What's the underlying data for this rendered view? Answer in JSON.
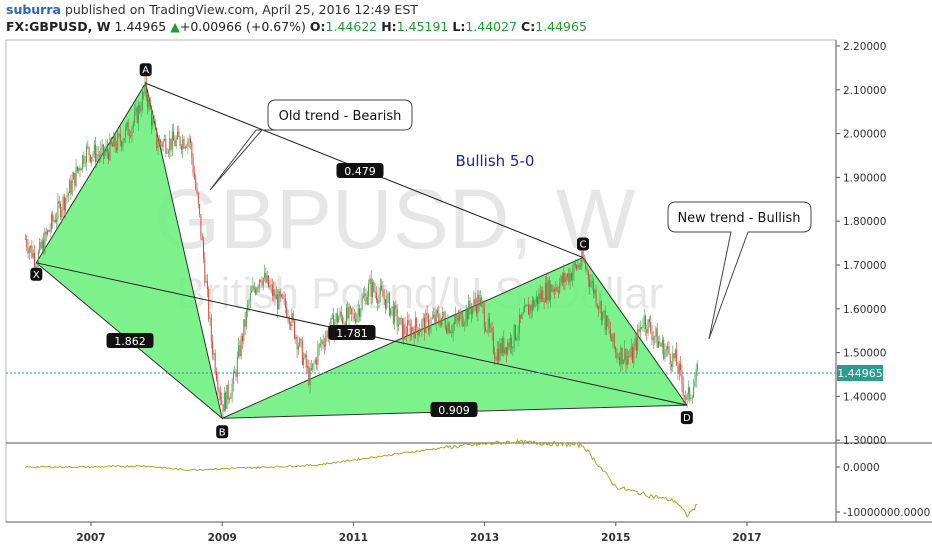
{
  "header": {
    "user": "suburra",
    "published": "published on TradingView.com, April 25, 2016 12:49 EST",
    "symbol": "FX:GBPUSD, W",
    "last": "1.44965",
    "change": "+0.00966 (+0.67%)",
    "open_label": "O:",
    "open": "1.44622",
    "high_label": "H:",
    "high": "1.45191",
    "low_label": "L:",
    "low": "1.44027",
    "close_label": "C:",
    "close": "1.44965"
  },
  "watermark": {
    "symbol": "GBPUSD, W",
    "name": "British Pound/U.S. Dollar"
  },
  "annotations": {
    "pattern_title": "Bullish 5-0",
    "old_trend": "Old trend - Bearish",
    "new_trend": "New trend - Bullish"
  },
  "colors": {
    "pattern_fill": "#66ee77",
    "candle_up": "#41a24b",
    "candle_down": "#d44a40",
    "indicator_line": "#a8a830",
    "price_line": "#2a9d8f",
    "text_blue": "#2020b0"
  },
  "chart_data": [
    {
      "type": "line",
      "series": [
        {
          "name": "",
          "description": "weekly price candles"
        }
      ],
      "y_axis": {
        "range": [
          1.28,
          2.22
        ],
        "ticks": [
          "2.20000",
          "2.10000",
          "2.00000",
          "1.90000",
          "1.80000",
          "1.70000",
          "1.60000",
          "1.50000",
          "1.40000",
          "1.30000"
        ],
        "last_price_label": "1.44965"
      },
      "x_axis": {
        "ticks": [
          "2007",
          "2009",
          "2011",
          "2013",
          "2015",
          "2017"
        ]
      },
      "pattern": {
        "points": [
          {
            "label": "X",
            "date": "2006-03",
            "price": 1.705
          },
          {
            "label": "A",
            "date": "2007-11",
            "price": 2.115
          },
          {
            "label": "B",
            "date": "2009-01",
            "price": 1.35
          },
          {
            "label": "C",
            "date": "2014-07",
            "price": 1.717
          },
          {
            "label": "D",
            "date": "2016-02",
            "price": 1.38
          }
        ],
        "ratios": [
          {
            "label": "1.862",
            "between": "X-B"
          },
          {
            "label": "0.479",
            "between": "A-C"
          },
          {
            "label": "1.781",
            "between": "X-D"
          },
          {
            "label": "0.909",
            "between": "B-D"
          }
        ]
      },
      "price_path": [
        [
          "2006-01",
          1.76
        ],
        [
          "2006-03",
          1.71
        ],
        [
          "2006-06",
          1.8
        ],
        [
          "2006-09",
          1.87
        ],
        [
          "2006-12",
          1.96
        ],
        [
          "2007-03",
          1.95
        ],
        [
          "2007-06",
          1.98
        ],
        [
          "2007-09",
          2.03
        ],
        [
          "2007-11",
          2.1
        ],
        [
          "2008-01",
          1.98
        ],
        [
          "2008-04",
          1.98
        ],
        [
          "2008-07",
          1.99
        ],
        [
          "2008-09",
          1.79
        ],
        [
          "2008-11",
          1.53
        ],
        [
          "2009-01",
          1.38
        ],
        [
          "2009-03",
          1.43
        ],
        [
          "2009-06",
          1.62
        ],
        [
          "2009-08",
          1.68
        ],
        [
          "2009-11",
          1.62
        ],
        [
          "2010-01",
          1.6
        ],
        [
          "2010-05",
          1.44
        ],
        [
          "2010-07",
          1.52
        ],
        [
          "2010-10",
          1.58
        ],
        [
          "2011-01",
          1.58
        ],
        [
          "2011-04",
          1.65
        ],
        [
          "2011-07",
          1.62
        ],
        [
          "2011-10",
          1.55
        ],
        [
          "2012-01",
          1.56
        ],
        [
          "2012-05",
          1.58
        ],
        [
          "2012-07",
          1.56
        ],
        [
          "2012-12",
          1.62
        ],
        [
          "2013-03",
          1.5
        ],
        [
          "2013-06",
          1.53
        ],
        [
          "2013-09",
          1.6
        ],
        [
          "2013-12",
          1.64
        ],
        [
          "2014-03",
          1.66
        ],
        [
          "2014-07",
          1.71
        ],
        [
          "2014-10",
          1.61
        ],
        [
          "2015-01",
          1.5
        ],
        [
          "2015-04",
          1.49
        ],
        [
          "2015-06",
          1.58
        ],
        [
          "2015-09",
          1.52
        ],
        [
          "2015-12",
          1.48
        ],
        [
          "2016-02",
          1.39
        ],
        [
          "2016-04",
          1.44965
        ]
      ]
    },
    {
      "type": "line",
      "series": [
        {
          "name": "",
          "description": "indicator pane"
        }
      ],
      "y_axis": {
        "ticks": [
          "0.0000",
          "-10000000.0000"
        ]
      },
      "values": [
        [
          "2006-01",
          0
        ],
        [
          "2007-01",
          0
        ],
        [
          "2007-11",
          0.03
        ],
        [
          "2008-06",
          -0.08
        ],
        [
          "2009-01",
          -0.05
        ],
        [
          "2010-06",
          0.05
        ],
        [
          "2011-06",
          0.3
        ],
        [
          "2012-06",
          0.55
        ],
        [
          "2013-06",
          0.7
        ],
        [
          "2014-01",
          0.65
        ],
        [
          "2014-07",
          0.6
        ],
        [
          "2015-01",
          -0.55
        ],
        [
          "2015-06",
          -0.75
        ],
        [
          "2015-12",
          -0.95
        ],
        [
          "2016-02",
          -1.35
        ],
        [
          "2016-04",
          -1.05
        ]
      ]
    }
  ]
}
